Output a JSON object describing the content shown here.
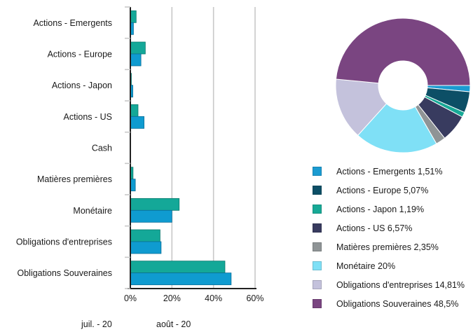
{
  "chart_data": [
    {
      "type": "bar",
      "orientation": "horizontal",
      "categories": [
        "Actions - Emergents",
        "Actions - Europe",
        "Actions - Japon",
        "Actions - US",
        "Cash",
        "Matières premières",
        "Monétaire",
        "Obligations d'entreprises",
        "Obligations Souveraines"
      ],
      "series": [
        {
          "name": "juil. - 20",
          "color": "#14a898",
          "values": [
            2.8,
            7.2,
            0.5,
            3.7,
            0.0,
            1.3,
            23.5,
            14.3,
            45.5
          ]
        },
        {
          "name": "août - 20",
          "color": "#0f9bd0",
          "values": [
            1.5,
            5.1,
            1.2,
            6.6,
            0.0,
            2.4,
            20.0,
            14.8,
            48.5
          ]
        }
      ],
      "xlim": [
        0,
        60
      ],
      "ticks": [
        "0%",
        "20%",
        "40%",
        "60%"
      ],
      "tick_values": [
        0,
        20,
        40,
        60
      ],
      "grid": true,
      "legend_position": "bottom-left"
    },
    {
      "type": "pie",
      "donut": true,
      "labels": [
        "Actions - Emergents 1,51%",
        "Actions - Europe 5,07%",
        "Actions - Japon 1,19%",
        "Actions - US 6,57%",
        "Matières premières 2,35%",
        "Monétaire 20%",
        "Obligations d'entreprises 14,81%",
        "Obligations Souveraines 48,5%"
      ],
      "values": [
        1.51,
        5.07,
        1.19,
        6.57,
        2.35,
        20,
        14.81,
        48.5
      ],
      "colors": [
        "#1b9bd1",
        "#0c4f66",
        "#17a996",
        "#383b5f",
        "#8f9496",
        "#7fe0f6",
        "#c4c2dc",
        "#7a4581"
      ],
      "legend_position": "bottom"
    }
  ]
}
